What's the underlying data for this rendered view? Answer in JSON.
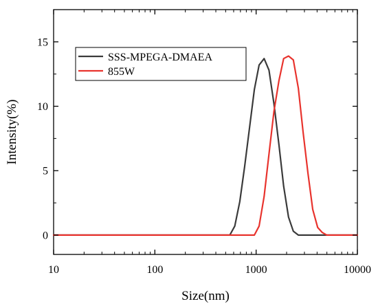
{
  "chart_data": {
    "type": "line",
    "title": "",
    "xlabel": "Size(nm)",
    "ylabel": "Intensity(%)",
    "x_scale": "log",
    "xlim": [
      10,
      10000
    ],
    "ylim": [
      -1.5,
      17.5
    ],
    "x_ticks": [
      10,
      100,
      1000,
      10000
    ],
    "x_tick_labels": [
      "10",
      "100",
      "1000",
      "10000"
    ],
    "y_ticks": [
      0,
      5,
      10,
      15
    ],
    "y_tick_labels": [
      "0",
      "5",
      "10",
      "15"
    ],
    "grid": false,
    "legend_position": "top-left",
    "series": [
      {
        "name": "SSS-MPEGA-DMAEA",
        "color": "#3a3a3a",
        "x": [
          10,
          550,
          615,
          690,
          770,
          860,
          960,
          1070,
          1200,
          1340,
          1500,
          1680,
          1870,
          2090,
          2330,
          2610,
          2910,
          3250,
          3620,
          4050,
          4500,
          10000
        ],
        "y": [
          0,
          0,
          0.7,
          2.6,
          5.3,
          8.3,
          11.3,
          13.2,
          13.7,
          12.8,
          10.2,
          7.0,
          3.8,
          1.4,
          0.3,
          0,
          0,
          0,
          0,
          0,
          0,
          0
        ]
      },
      {
        "name": "855W",
        "color": "#e8332d",
        "x": [
          10,
          960,
          1070,
          1200,
          1340,
          1500,
          1680,
          1870,
          2090,
          2330,
          2610,
          2910,
          3250,
          3620,
          4050,
          4500,
          5000,
          5600,
          6200,
          10000
        ],
        "y": [
          0,
          0,
          0.7,
          3.0,
          6.3,
          9.6,
          12.0,
          13.7,
          13.9,
          13.6,
          11.4,
          8.0,
          4.8,
          2.0,
          0.6,
          0.2,
          0,
          0,
          0,
          0
        ]
      }
    ]
  }
}
